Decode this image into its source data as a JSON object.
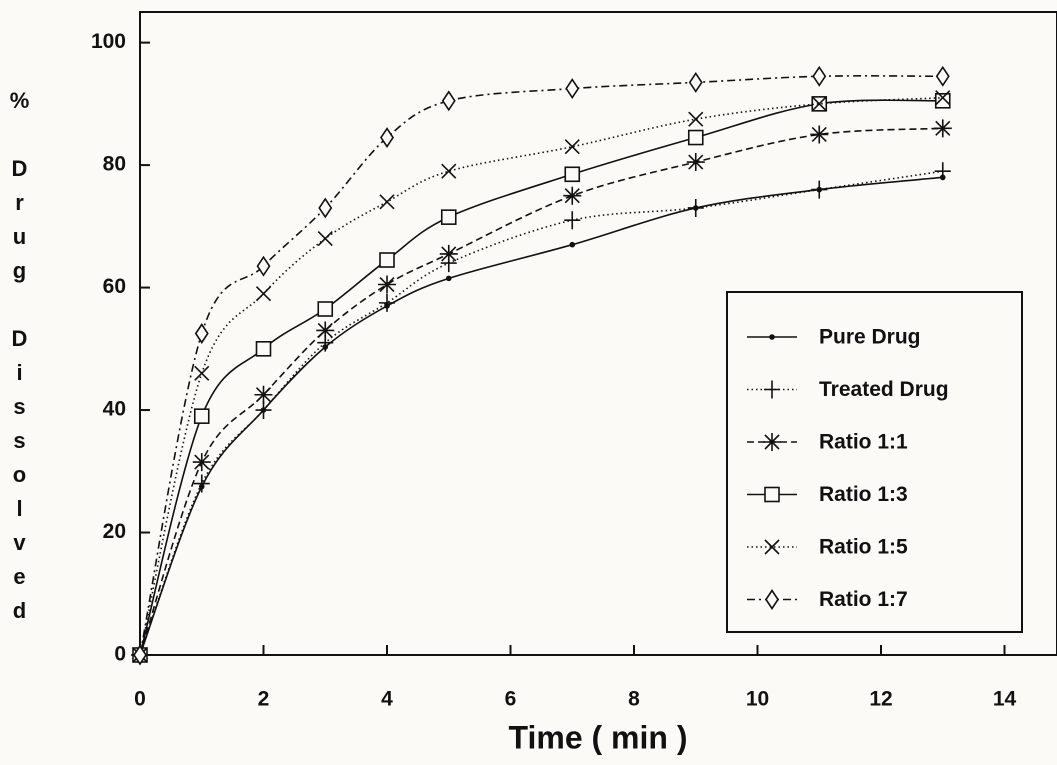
{
  "chart_data": {
    "type": "line",
    "x_label": "Time ( min )",
    "y_label": "% Drug Dissolved",
    "x": [
      0,
      1,
      2,
      3,
      4,
      5,
      7,
      9,
      11,
      13
    ],
    "xlim": [
      0,
      14.85
    ],
    "xticks": [
      0,
      2,
      4,
      6,
      8,
      10,
      12,
      14
    ],
    "ylim": [
      0,
      105
    ],
    "yticks": [
      0,
      20,
      40,
      60,
      80,
      100
    ],
    "legend": "lower right",
    "series": [
      {
        "name": "Pure Drug",
        "color": "#111111",
        "marker": "dot",
        "line_style": "solid",
        "values": [
          0,
          27.5,
          40,
          50.3,
          57,
          61.5,
          67,
          73,
          76,
          78
        ]
      },
      {
        "name": "Treated Drug",
        "color": "#111111",
        "marker": "plus",
        "line_style": "dotted",
        "values": [
          0,
          28,
          40,
          51,
          57.5,
          64,
          71,
          73,
          76,
          79
        ]
      },
      {
        "name": "Ratio 1:1",
        "color": "#111111",
        "marker": "asterisk",
        "line_style": "dashed",
        "values": [
          0,
          31.5,
          42.5,
          53,
          60.5,
          65.5,
          75,
          80.5,
          85,
          86
        ]
      },
      {
        "name": "Ratio 1:3",
        "color": "#111111",
        "marker": "square",
        "line_style": "solid",
        "values": [
          0,
          39,
          50,
          56.5,
          64.5,
          71.5,
          78.5,
          84.5,
          90,
          90.5
        ]
      },
      {
        "name": "Ratio 1:5",
        "color": "#111111",
        "marker": "cross",
        "line_style": "dotted",
        "values": [
          0,
          46,
          59,
          68,
          74,
          79,
          83,
          87.5,
          90,
          91
        ]
      },
      {
        "name": "Ratio 1:7",
        "color": "#111111",
        "marker": "diamond",
        "line_style": "dashdot",
        "values": [
          0,
          52.5,
          63.5,
          73,
          84.5,
          90.5,
          92.5,
          93.5,
          94.5,
          94.5
        ]
      }
    ]
  }
}
